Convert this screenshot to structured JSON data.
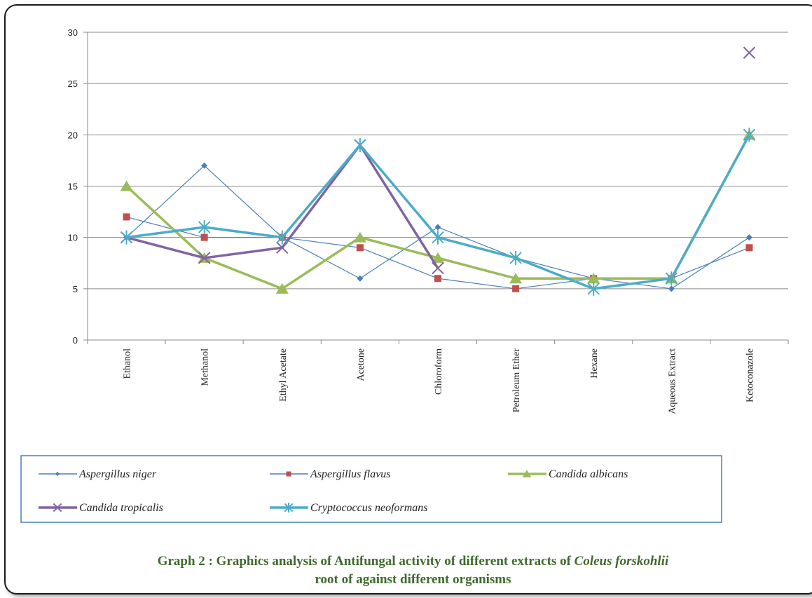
{
  "chart_data": {
    "type": "line",
    "categories": [
      "Ethanol",
      "Methanol",
      "Ethyl Acetate",
      "Acetone",
      "Chloroform",
      "Petroleum Ether",
      "Hexane",
      "Aqueous Extract",
      "Ketoconazole"
    ],
    "ylim": [
      0,
      30
    ],
    "yticks": [
      "0",
      "5",
      "10",
      "15",
      "20",
      "25",
      "30"
    ],
    "grid": true,
    "legend_position": "bottom",
    "series": [
      {
        "name": "Aspergillus niger",
        "color": "#4a7ebb",
        "marker": "diamond",
        "values": [
          10,
          17,
          10,
          6,
          11,
          8,
          6,
          5,
          10
        ]
      },
      {
        "name": "Aspergillus flavus",
        "color": "#4a7ebb",
        "marker_color": "#c0504d",
        "marker": "square",
        "values": [
          12,
          10,
          10,
          9,
          6,
          5,
          6,
          6,
          9
        ]
      },
      {
        "name": "Candida albicans",
        "color": "#9bbb59",
        "marker": "triangle",
        "values": [
          15,
          8,
          5,
          10,
          8,
          6,
          6,
          6,
          20
        ]
      },
      {
        "name": "Candida tropicalis",
        "color": "#8064a2",
        "marker": "x",
        "values": [
          10,
          8,
          9,
          19,
          7,
          null,
          null,
          null,
          28
        ]
      },
      {
        "name": "Cryptococcus neoformans",
        "color": "#4bacc6",
        "marker": "star",
        "values": [
          10,
          11,
          10,
          19,
          10,
          8,
          5,
          6,
          20
        ]
      }
    ]
  },
  "caption": {
    "line1_prefix": "Graph  2 : Graphics  analysis of Antifungal activity  of different extracts of ",
    "line1_italic": "Coleus forskohlii",
    "line2": "root of against different organisms"
  }
}
